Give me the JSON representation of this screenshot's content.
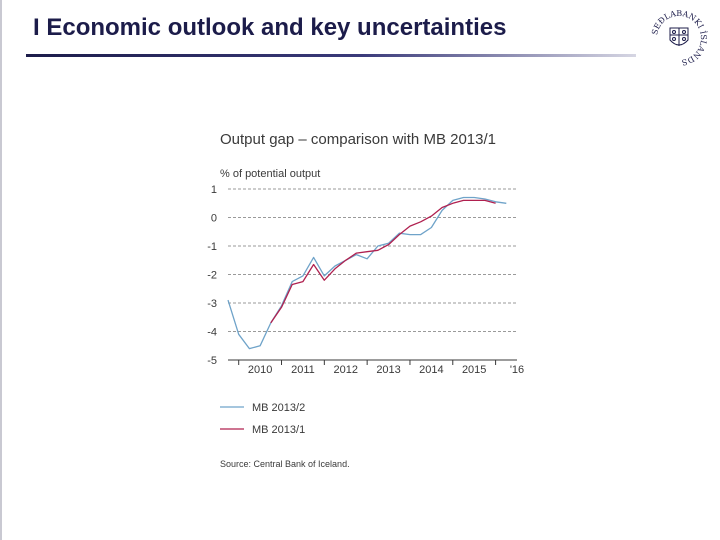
{
  "slide": {
    "title": "I Economic outlook and key uncertainties",
    "logo_text": "SEÐLABANKI ÍSLANDS",
    "colors": {
      "title": "#1c1c4a",
      "rule_dark": "#1c1c4a",
      "rule_light": "#d6d6e3"
    }
  },
  "chart_data": {
    "type": "line",
    "title": "Output gap – comparison with MB 2013/1",
    "unit_label": "% of potential output",
    "y_ticks": [
      "1",
      "0",
      "-1",
      "-2",
      "-3",
      "-4",
      "-5"
    ],
    "ylim": [
      -5,
      1
    ],
    "x_tick_labels": [
      "2010",
      "2011",
      "2012",
      "2013",
      "2014",
      "2015",
      "'16"
    ],
    "xlim": [
      2009.75,
      2016.5
    ],
    "grid": "horizontal dashed",
    "legend_position": "bottom-left",
    "source": "Source: Central Bank of Iceland.",
    "series": [
      {
        "name": "MB 2013/2",
        "color": "#6fa3c9",
        "x": [
          2009.75,
          2010.0,
          2010.25,
          2010.5,
          2010.75,
          2011.0,
          2011.25,
          2011.5,
          2011.75,
          2012.0,
          2012.25,
          2012.5,
          2012.75,
          2013.0,
          2013.25,
          2013.5,
          2013.75,
          2014.0,
          2014.25,
          2014.5,
          2014.75,
          2015.0,
          2015.25,
          2015.5,
          2015.75,
          2016.0,
          2016.25
        ],
        "values": [
          -2.9,
          -4.1,
          -4.6,
          -4.5,
          -3.7,
          -3.1,
          -2.25,
          -2.05,
          -1.4,
          -2.05,
          -1.7,
          -1.5,
          -1.3,
          -1.45,
          -1.0,
          -0.9,
          -0.55,
          -0.6,
          -0.6,
          -0.35,
          0.25,
          0.6,
          0.7,
          0.7,
          0.65,
          0.55,
          0.5
        ]
      },
      {
        "name": "MB 2013/1",
        "color": "#b0204f",
        "x": [
          2010.75,
          2011.0,
          2011.25,
          2011.5,
          2011.75,
          2012.0,
          2012.25,
          2012.5,
          2012.75,
          2013.0,
          2013.25,
          2013.5,
          2013.75,
          2014.0,
          2014.25,
          2014.5,
          2014.75,
          2015.0,
          2015.25,
          2015.5,
          2015.75,
          2016.0
        ],
        "values": [
          -3.7,
          -3.15,
          -2.35,
          -2.25,
          -1.65,
          -2.2,
          -1.8,
          -1.5,
          -1.25,
          -1.2,
          -1.15,
          -0.95,
          -0.6,
          -0.3,
          -0.15,
          0.05,
          0.35,
          0.5,
          0.6,
          0.6,
          0.6,
          0.5
        ]
      }
    ]
  }
}
